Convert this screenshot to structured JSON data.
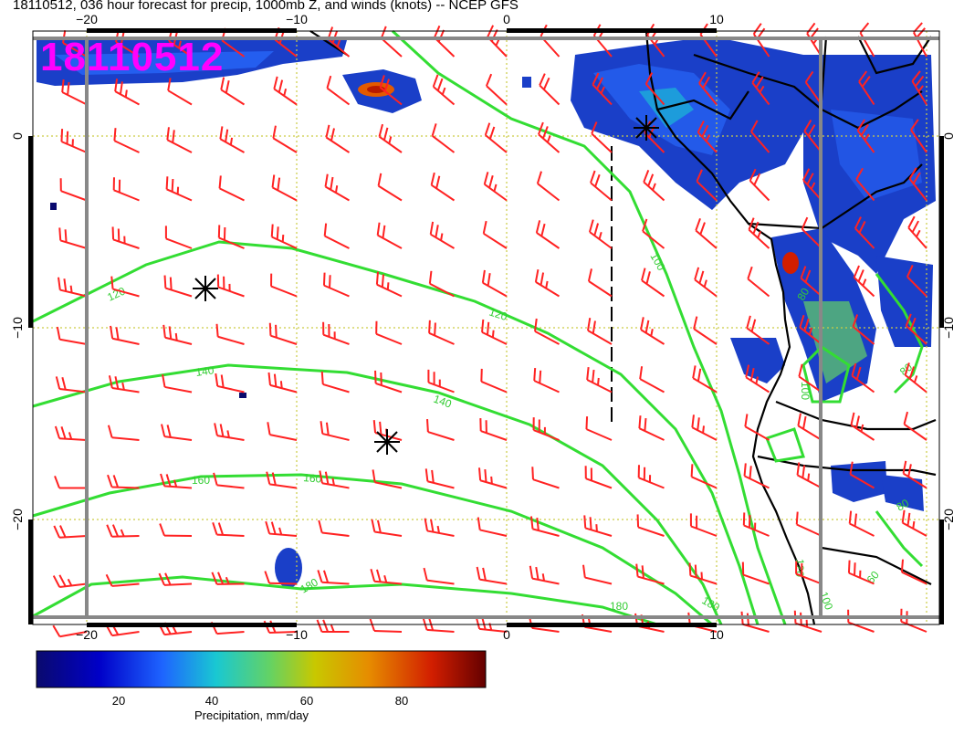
{
  "header": {
    "title": "18110512, 036 hour forecast for precip, 1000mb Z, and winds (knots) -- NCEP GFS"
  },
  "stamp": "18110512",
  "axes": {
    "lon_ticks": [
      "−20",
      "−10",
      "0",
      "10"
    ],
    "lat_ticks": [
      "0",
      "−10",
      "−20"
    ]
  },
  "contour_labels": {
    "c100": "100",
    "c120": "120",
    "c140": "140",
    "c160": "160",
    "c180": "180",
    "c80": "80",
    "c60": "60"
  },
  "colorbar": {
    "title": "Precipitation, mm/day",
    "ticks": [
      "20",
      "40",
      "60",
      "80"
    ],
    "colors": [
      "#0a0a6e",
      "#0000c8",
      "#1e64ff",
      "#19c8d2",
      "#64d264",
      "#c8c800",
      "#e68c00",
      "#d21e00",
      "#640000"
    ]
  },
  "colors": {
    "contour": "#33dd33",
    "barb": "#ff2222",
    "grid": "#cccc44",
    "coast": "#000000",
    "frame": "#888888"
  }
}
